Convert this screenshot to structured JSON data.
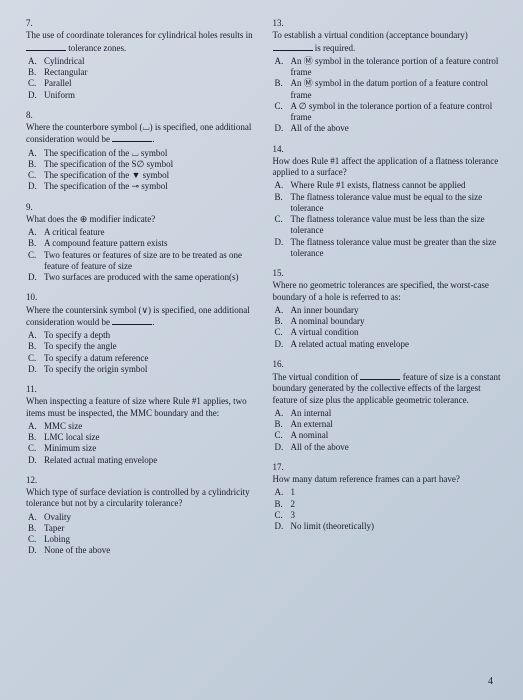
{
  "pageNumber": "4",
  "leftColumn": [
    {
      "num": "7.",
      "text": "The use of coordinate tolerances for cylindrical holes results in ________ tolerance zones.",
      "opts": [
        {
          "l": "A.",
          "t": "Cylindrical"
        },
        {
          "l": "B.",
          "t": "Rectangular"
        },
        {
          "l": "C.",
          "t": "Parallel"
        },
        {
          "l": "D.",
          "t": "Uniform"
        }
      ]
    },
    {
      "num": "8.",
      "text": "Where the counterbore symbol (⌴) is specified, one additional consideration would be ________.",
      "opts": [
        {
          "l": "A.",
          "t": "The specification of the ⌴ symbol"
        },
        {
          "l": "B.",
          "t": "The specification of the S∅ symbol"
        },
        {
          "l": "C.",
          "t": "The specification of the ▼ symbol"
        },
        {
          "l": "D.",
          "t": "The specification of the ⊸ symbol"
        }
      ]
    },
    {
      "num": "9.",
      "text": "What does the ⊕ modifier indicate?",
      "opts": [
        {
          "l": "A.",
          "t": "A critical feature"
        },
        {
          "l": "B.",
          "t": "A compound feature pattern exists"
        },
        {
          "l": "C.",
          "t": "Two features or features of size are to be treated as one feature of feature of size"
        },
        {
          "l": "D.",
          "t": "Two surfaces are produced with the same operation(s)"
        }
      ]
    },
    {
      "num": "10.",
      "text": "Where the countersink symbol (∨) is specified, one additional consideration would be ________.",
      "opts": [
        {
          "l": "A.",
          "t": "To specify a depth"
        },
        {
          "l": "B.",
          "t": "To specify the angle"
        },
        {
          "l": "C.",
          "t": "To specify a datum reference"
        },
        {
          "l": "D.",
          "t": "To specify the origin symbol"
        }
      ]
    },
    {
      "num": "11.",
      "text": "When inspecting a feature of size where Rule #1 applies, two items must be inspected, the MMC boundary and the:",
      "opts": [
        {
          "l": "A.",
          "t": "MMC size"
        },
        {
          "l": "B.",
          "t": "LMC local size"
        },
        {
          "l": "C.",
          "t": "Minimum size"
        },
        {
          "l": "D.",
          "t": "Related actual mating envelope"
        }
      ]
    },
    {
      "num": "12.",
      "text": "Which type of surface deviation is controlled by a cylindricity tolerance but not by a circularity tolerance?",
      "opts": [
        {
          "l": "A.",
          "t": "Ovality"
        },
        {
          "l": "B.",
          "t": "Taper"
        },
        {
          "l": "C.",
          "t": "Lobing"
        },
        {
          "l": "D.",
          "t": "None of the above"
        }
      ]
    }
  ],
  "rightColumn": [
    {
      "num": "13.",
      "text": "To establish a virtual condition (acceptance boundary) ________ is required.",
      "opts": [
        {
          "l": "A.",
          "t": "An Ⓜ symbol in the tolerance portion of a feature control frame"
        },
        {
          "l": "B.",
          "t": "An Ⓜ symbol in the datum portion of a feature control frame"
        },
        {
          "l": "C.",
          "t": "A ∅ symbol in the tolerance portion of a feature control frame"
        },
        {
          "l": "D.",
          "t": "All of the above"
        }
      ]
    },
    {
      "num": "14.",
      "text": "How does Rule #1 affect the application of a flatness tolerance applied to a surface?",
      "opts": [
        {
          "l": "A.",
          "t": "Where Rule #1 exists, flatness cannot be applied"
        },
        {
          "l": "B.",
          "t": "The flatness tolerance value must be equal to the size tolerance"
        },
        {
          "l": "C.",
          "t": "The flatness tolerance value must be less than the size tolerance"
        },
        {
          "l": "D.",
          "t": "The flatness tolerance value must be greater than the size tolerance"
        }
      ]
    },
    {
      "num": "15.",
      "text": "Where no geometric tolerances are specified, the worst-case boundary of a hole is referred to as:",
      "opts": [
        {
          "l": "A.",
          "t": "An inner boundary"
        },
        {
          "l": "B.",
          "t": "A nominal boundary"
        },
        {
          "l": "C.",
          "t": "A virtual condition"
        },
        {
          "l": "D.",
          "t": "A related actual mating envelope"
        }
      ]
    },
    {
      "num": "16.",
      "text": "The virtual condition of ________ feature of size is a constant boundary generated by the collective effects of the largest feature of size plus the applicable geometric tolerance.",
      "opts": [
        {
          "l": "A.",
          "t": "An internal"
        },
        {
          "l": "B.",
          "t": "An external"
        },
        {
          "l": "C.",
          "t": "A nominal"
        },
        {
          "l": "D.",
          "t": "All of the above"
        }
      ]
    },
    {
      "num": "17.",
      "text": "How many datum reference frames can a part have?",
      "opts": [
        {
          "l": "A.",
          "t": "1"
        },
        {
          "l": "B.",
          "t": "2"
        },
        {
          "l": "C.",
          "t": "3"
        },
        {
          "l": "D.",
          "t": "No limit (theoretically)"
        }
      ]
    }
  ]
}
